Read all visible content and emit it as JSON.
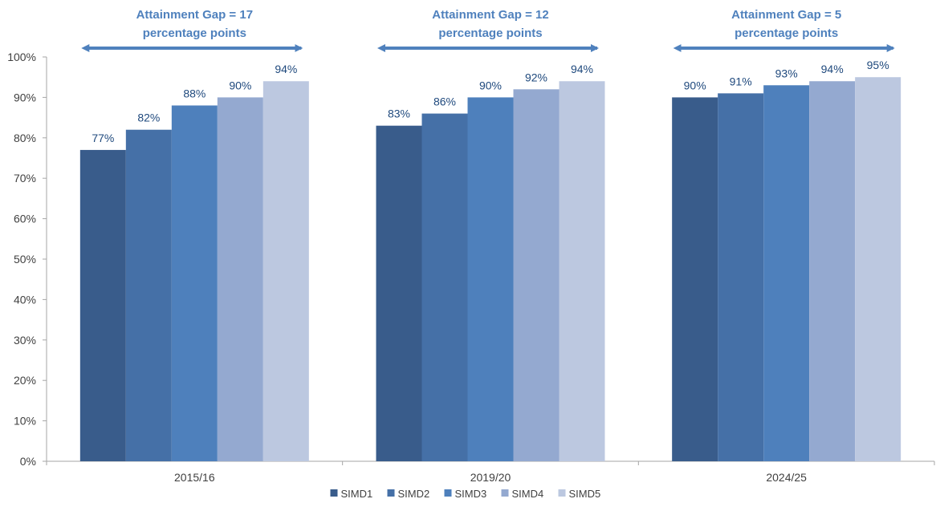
{
  "chart_data": {
    "type": "bar",
    "categories": [
      "2015/16",
      "2019/20",
      "2024/25"
    ],
    "series": [
      {
        "name": "SIMD1",
        "values": [
          77,
          83,
          90
        ],
        "labels": [
          "77%",
          "83%",
          "90%"
        ],
        "color": "#395C8B"
      },
      {
        "name": "SIMD2",
        "values": [
          82,
          86,
          91
        ],
        "labels": [
          "82%",
          "86%",
          "91%"
        ],
        "color": "#4570A7"
      },
      {
        "name": "SIMD3",
        "values": [
          88,
          90,
          93
        ],
        "labels": [
          "88%",
          "90%",
          "93%"
        ],
        "color": "#4E80BC"
      },
      {
        "name": "SIMD4",
        "values": [
          90,
          92,
          94
        ],
        "labels": [
          "90%",
          "92%",
          "94%"
        ],
        "color": "#94A9D0"
      },
      {
        "name": "SIMD5",
        "values": [
          94,
          94,
          95
        ],
        "labels": [
          "94%",
          "94%",
          "95%"
        ],
        "color": "#BCC8E0"
      }
    ],
    "ylim": [
      0,
      100
    ],
    "yticks": [
      "0%",
      "10%",
      "20%",
      "30%",
      "40%",
      "50%",
      "60%",
      "70%",
      "80%",
      "90%",
      "100%"
    ],
    "annotations": [
      {
        "line1": "Attainment Gap = 17",
        "line2": "percentage points"
      },
      {
        "line1": "Attainment Gap = 12",
        "line2": "percentage points"
      },
      {
        "line1": "Attainment Gap = 5",
        "line2": "percentage points"
      }
    ],
    "legend_position": "bottom",
    "grid": false,
    "colors": {
      "annotation": "#4F81BD",
      "data_label": "#1F497D",
      "axis_text": "#404040",
      "axis_line": "#A6A6A6"
    }
  }
}
